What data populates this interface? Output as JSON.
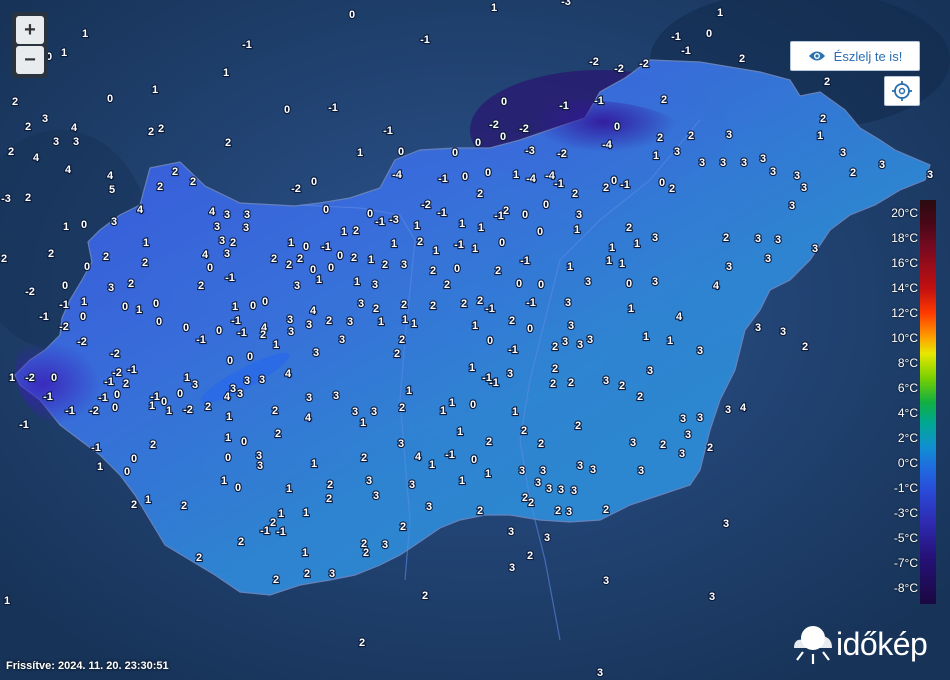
{
  "controls": {
    "zoom_in": "+",
    "zoom_out": "−",
    "observe_label": "Észlelj te is!"
  },
  "legend": {
    "labels": [
      "20°C",
      "18°C",
      "16°C",
      "14°C",
      "12°C",
      "10°C",
      "8°C",
      "6°C",
      "4°C",
      "2°C",
      "0°C",
      "-1°C",
      "-3°C",
      "-5°C",
      "-7°C",
      "-8°C"
    ]
  },
  "footer": {
    "updated": "Frissítve: 2024. 11. 20. 23:30:51",
    "brand": "időkép"
  },
  "colors": {
    "background": "#1f3f6e",
    "country_fill": "#3a6bd8",
    "accent": "#2a6fb0"
  },
  "stations": [
    [
      "1",
      494,
      7
    ],
    [
      "-3",
      566,
      1
    ],
    [
      "0",
      352,
      14
    ],
    [
      "1",
      720,
      12
    ],
    [
      "1",
      85,
      33
    ],
    [
      "-1",
      247,
      44
    ],
    [
      "-1",
      425,
      39
    ],
    [
      "-1",
      676,
      36
    ],
    [
      "0",
      709,
      33
    ],
    [
      "-1",
      686,
      50
    ],
    [
      "0",
      49,
      56
    ],
    [
      "1",
      64,
      52
    ],
    [
      "1",
      226,
      72
    ],
    [
      "-2",
      594,
      61
    ],
    [
      "-2",
      619,
      68
    ],
    [
      "-2",
      644,
      63
    ],
    [
      "2",
      742,
      58
    ],
    [
      "2",
      827,
      81
    ],
    [
      "0",
      110,
      98
    ],
    [
      "0",
      287,
      109
    ],
    [
      "-1",
      333,
      107
    ],
    [
      "0",
      504,
      101
    ],
    [
      "-1",
      564,
      105
    ],
    [
      "-1",
      599,
      100
    ],
    [
      "2",
      664,
      99
    ],
    [
      "2",
      15,
      101
    ],
    [
      "1",
      155,
      89
    ],
    [
      "2",
      28,
      126
    ],
    [
      "3",
      45,
      118
    ],
    [
      "4",
      74,
      127
    ],
    [
      "3",
      56,
      141
    ],
    [
      "3",
      76,
      141
    ],
    [
      "2",
      151,
      131
    ],
    [
      "2",
      161,
      128
    ],
    [
      "2",
      228,
      142
    ],
    [
      "-1",
      388,
      130
    ],
    [
      "-2",
      494,
      124
    ],
    [
      "-2",
      524,
      128
    ],
    [
      "0",
      617,
      126
    ],
    [
      "2",
      660,
      137
    ],
    [
      "2",
      691,
      135
    ],
    [
      "3",
      729,
      134
    ],
    [
      "2",
      823,
      118
    ],
    [
      "1",
      820,
      135
    ],
    [
      "2",
      11,
      151
    ],
    [
      "4",
      36,
      157
    ],
    [
      "4",
      68,
      169
    ],
    [
      "2",
      160,
      186
    ],
    [
      "2",
      175,
      171
    ],
    [
      "1",
      360,
      152
    ],
    [
      "0",
      401,
      151
    ],
    [
      "0",
      455,
      152
    ],
    [
      "0",
      478,
      142
    ],
    [
      "0",
      503,
      136
    ],
    [
      "-3",
      530,
      150
    ],
    [
      "-2",
      562,
      153
    ],
    [
      "-4",
      607,
      144
    ],
    [
      "1",
      656,
      155
    ],
    [
      "3",
      677,
      151
    ],
    [
      "3",
      702,
      162
    ],
    [
      "3",
      723,
      162
    ],
    [
      "3",
      744,
      162
    ],
    [
      "3",
      763,
      158
    ],
    [
      "3",
      843,
      152
    ],
    [
      "3",
      882,
      164
    ],
    [
      "4",
      110,
      175
    ],
    [
      "5",
      112,
      189
    ],
    [
      "2",
      193,
      181
    ],
    [
      "-2",
      296,
      188
    ],
    [
      "0",
      314,
      181
    ],
    [
      "-4",
      397,
      174
    ],
    [
      "-1",
      443,
      178
    ],
    [
      "0",
      465,
      176
    ],
    [
      "0",
      488,
      172
    ],
    [
      "1",
      516,
      174
    ],
    [
      "-4",
      531,
      178
    ],
    [
      "-4",
      550,
      175
    ],
    [
      "-1",
      559,
      183
    ],
    [
      "0",
      614,
      180
    ],
    [
      "-1",
      625,
      184
    ],
    [
      "0",
      662,
      182
    ],
    [
      "2",
      672,
      188
    ],
    [
      "3",
      773,
      171
    ],
    [
      "3",
      797,
      175
    ],
    [
      "2",
      853,
      172
    ],
    [
      "3",
      930,
      174
    ],
    [
      "-3",
      6,
      198
    ],
    [
      "2",
      28,
      197
    ],
    [
      "4",
      140,
      209
    ],
    [
      "3",
      114,
      221
    ],
    [
      "4",
      212,
      211
    ],
    [
      "3",
      227,
      214
    ],
    [
      "3",
      247,
      214
    ],
    [
      "0",
      326,
      209
    ],
    [
      "0",
      370,
      213
    ],
    [
      "-2",
      426,
      204
    ],
    [
      "2",
      480,
      193
    ],
    [
      "2",
      506,
      210
    ],
    [
      "0",
      546,
      204
    ],
    [
      "2",
      575,
      193
    ],
    [
      "3",
      579,
      214
    ],
    [
      "2",
      606,
      187
    ],
    [
      "3",
      804,
      187
    ],
    [
      "3",
      792,
      205
    ],
    [
      "1",
      66,
      226
    ],
    [
      "0",
      84,
      224
    ],
    [
      "3",
      217,
      226
    ],
    [
      "3",
      246,
      227
    ],
    [
      "3",
      222,
      240
    ],
    [
      "1",
      344,
      231
    ],
    [
      "2",
      356,
      230
    ],
    [
      "-1",
      380,
      221
    ],
    [
      "-3",
      394,
      219
    ],
    [
      "1",
      417,
      225
    ],
    [
      "-1",
      442,
      212
    ],
    [
      "1",
      462,
      223
    ],
    [
      "1",
      481,
      227
    ],
    [
      "-1",
      499,
      215
    ],
    [
      "0",
      525,
      214
    ],
    [
      "0",
      540,
      231
    ],
    [
      "1",
      577,
      229
    ],
    [
      "2",
      629,
      227
    ],
    [
      "3",
      655,
      237
    ],
    [
      "2",
      726,
      237
    ],
    [
      "3",
      758,
      238
    ],
    [
      "3",
      778,
      239
    ],
    [
      "1",
      146,
      242
    ],
    [
      "2",
      233,
      242
    ],
    [
      "4",
      205,
      254
    ],
    [
      "3",
      227,
      253
    ],
    [
      "1",
      291,
      242
    ],
    [
      "0",
      306,
      246
    ],
    [
      "-1",
      326,
      246
    ],
    [
      "0",
      340,
      255
    ],
    [
      "2",
      354,
      257
    ],
    [
      "1",
      394,
      243
    ],
    [
      "2",
      420,
      241
    ],
    [
      "1",
      436,
      250
    ],
    [
      "-1",
      459,
      244
    ],
    [
      "1",
      475,
      248
    ],
    [
      "0",
      502,
      242
    ],
    [
      "1",
      612,
      247
    ],
    [
      "1",
      637,
      243
    ],
    [
      "3",
      815,
      248
    ],
    [
      "2",
      4,
      258
    ],
    [
      "2",
      51,
      253
    ],
    [
      "0",
      87,
      266
    ],
    [
      "2",
      106,
      256
    ],
    [
      "2",
      145,
      262
    ],
    [
      "0",
      210,
      267
    ],
    [
      "2",
      274,
      258
    ],
    [
      "2",
      289,
      264
    ],
    [
      "2",
      300,
      258
    ],
    [
      "0",
      313,
      269
    ],
    [
      "0",
      331,
      267
    ],
    [
      "1",
      371,
      259
    ],
    [
      "2",
      385,
      264
    ],
    [
      "3",
      404,
      264
    ],
    [
      "2",
      433,
      270
    ],
    [
      "0",
      457,
      268
    ],
    [
      "2",
      498,
      270
    ],
    [
      "-1",
      525,
      260
    ],
    [
      "1",
      570,
      266
    ],
    [
      "1",
      609,
      260
    ],
    [
      "1",
      622,
      263
    ],
    [
      "3",
      655,
      281
    ],
    [
      "4",
      716,
      285
    ],
    [
      "3",
      729,
      266
    ],
    [
      "3",
      768,
      258
    ],
    [
      "-2",
      30,
      291
    ],
    [
      "0",
      65,
      285
    ],
    [
      "3",
      111,
      287
    ],
    [
      "2",
      131,
      283
    ],
    [
      "-1",
      230,
      277
    ],
    [
      "2",
      201,
      285
    ],
    [
      "3",
      297,
      285
    ],
    [
      "1",
      319,
      279
    ],
    [
      "1",
      357,
      281
    ],
    [
      "3",
      375,
      284
    ],
    [
      "2",
      447,
      284
    ],
    [
      "0",
      519,
      283
    ],
    [
      "0",
      541,
      284
    ],
    [
      "3",
      588,
      281
    ],
    [
      "0",
      629,
      283
    ],
    [
      "1",
      84,
      301
    ],
    [
      "0",
      125,
      306
    ],
    [
      "1",
      139,
      309
    ],
    [
      "0",
      156,
      303
    ],
    [
      "1",
      235,
      306
    ],
    [
      "0",
      253,
      305
    ],
    [
      "0",
      265,
      301
    ],
    [
      "4",
      313,
      310
    ],
    [
      "3",
      361,
      303
    ],
    [
      "2",
      376,
      308
    ],
    [
      "2",
      404,
      304
    ],
    [
      "2",
      433,
      305
    ],
    [
      "2",
      464,
      303
    ],
    [
      "2",
      480,
      300
    ],
    [
      "-1",
      490,
      308
    ],
    [
      "-1",
      531,
      302
    ],
    [
      "3",
      568,
      302
    ],
    [
      "1",
      631,
      308
    ],
    [
      "4",
      679,
      316
    ],
    [
      "-1",
      44,
      316
    ],
    [
      "-1",
      64,
      304
    ],
    [
      "0",
      83,
      316
    ],
    [
      "-2",
      64,
      326
    ],
    [
      "0",
      159,
      321
    ],
    [
      "0",
      186,
      327
    ],
    [
      "0",
      219,
      330
    ],
    [
      "-1",
      236,
      320
    ],
    [
      "4",
      264,
      327
    ],
    [
      "3",
      290,
      319
    ],
    [
      "3",
      309,
      324
    ],
    [
      "2",
      329,
      320
    ],
    [
      "3",
      350,
      321
    ],
    [
      "1",
      381,
      321
    ],
    [
      "1",
      405,
      319
    ],
    [
      "1",
      414,
      323
    ],
    [
      "1",
      475,
      325
    ],
    [
      "2",
      512,
      320
    ],
    [
      "0",
      530,
      328
    ],
    [
      "3",
      571,
      325
    ],
    [
      "3",
      565,
      341
    ],
    [
      "1",
      646,
      336
    ],
    [
      "1",
      670,
      340
    ],
    [
      "3",
      758,
      327
    ],
    [
      "3",
      783,
      331
    ],
    [
      "-2",
      82,
      341
    ],
    [
      "-1",
      201,
      339
    ],
    [
      "-1",
      242,
      332
    ],
    [
      "2",
      263,
      334
    ],
    [
      "1",
      276,
      344
    ],
    [
      "3",
      291,
      331
    ],
    [
      "3",
      342,
      339
    ],
    [
      "2",
      402,
      339
    ],
    [
      "0",
      490,
      340
    ],
    [
      "-1",
      513,
      349
    ],
    [
      "2",
      555,
      346
    ],
    [
      "3",
      580,
      344
    ],
    [
      "3",
      590,
      339
    ],
    [
      "3",
      700,
      350
    ],
    [
      "2",
      805,
      346
    ],
    [
      "-2",
      115,
      353
    ],
    [
      "0",
      230,
      360
    ],
    [
      "0",
      250,
      356
    ],
    [
      "3",
      316,
      352
    ],
    [
      "2",
      397,
      353
    ],
    [
      "-1",
      132,
      369
    ],
    [
      "-2",
      117,
      372
    ],
    [
      "-1",
      109,
      381
    ],
    [
      "2",
      126,
      383
    ],
    [
      "0",
      54,
      377
    ],
    [
      "-2",
      30,
      377
    ],
    [
      "3",
      195,
      384
    ],
    [
      "3",
      233,
      388
    ],
    [
      "3",
      247,
      380
    ],
    [
      "3",
      262,
      379
    ],
    [
      "4",
      288,
      373
    ],
    [
      "1",
      472,
      367
    ],
    [
      "-1",
      487,
      377
    ],
    [
      "-1",
      494,
      382
    ],
    [
      "3",
      510,
      373
    ],
    [
      "2",
      555,
      368
    ],
    [
      "2",
      571,
      382
    ],
    [
      "2",
      553,
      383
    ],
    [
      "3",
      606,
      380
    ],
    [
      "2",
      622,
      385
    ],
    [
      "3",
      650,
      370
    ],
    [
      "1",
      12,
      377
    ],
    [
      "0",
      180,
      393
    ],
    [
      "1",
      187,
      377
    ],
    [
      "-1",
      48,
      396
    ],
    [
      "-1",
      103,
      397
    ],
    [
      "0",
      117,
      394
    ],
    [
      "-2",
      94,
      410
    ],
    [
      "0",
      115,
      407
    ],
    [
      "-1",
      70,
      410
    ],
    [
      "-1",
      24,
      424
    ],
    [
      "1",
      152,
      405
    ],
    [
      "-1",
      155,
      396
    ],
    [
      "0",
      164,
      401
    ],
    [
      "1",
      169,
      410
    ],
    [
      "-2",
      188,
      409
    ],
    [
      "2",
      208,
      406
    ],
    [
      "4",
      227,
      396
    ],
    [
      "3",
      240,
      393
    ],
    [
      "2",
      275,
      410
    ],
    [
      "3",
      309,
      397
    ],
    [
      "3",
      336,
      395
    ],
    [
      "3",
      355,
      411
    ],
    [
      "3",
      374,
      411
    ],
    [
      "2",
      402,
      407
    ],
    [
      "1",
      409,
      390
    ],
    [
      "1",
      443,
      410
    ],
    [
      "1",
      452,
      402
    ],
    [
      "0",
      473,
      404
    ],
    [
      "1",
      515,
      411
    ],
    [
      "2",
      640,
      396
    ],
    [
      "3",
      683,
      418
    ],
    [
      "3",
      700,
      417
    ],
    [
      "3",
      728,
      409
    ],
    [
      "4",
      743,
      407
    ],
    [
      "1",
      229,
      416
    ],
    [
      "4",
      308,
      417
    ],
    [
      "1",
      363,
      422
    ],
    [
      "1",
      460,
      431
    ],
    [
      "2",
      524,
      430
    ],
    [
      "2",
      578,
      425
    ],
    [
      "2",
      489,
      441
    ],
    [
      "2",
      541,
      443
    ],
    [
      "3",
      633,
      442
    ],
    [
      "2",
      663,
      444
    ],
    [
      "3",
      688,
      434
    ],
    [
      "2",
      710,
      447
    ],
    [
      "-1",
      96,
      447
    ],
    [
      "2",
      153,
      444
    ],
    [
      "1",
      228,
      437
    ],
    [
      "0",
      244,
      441
    ],
    [
      "3",
      259,
      455
    ],
    [
      "2",
      278,
      433
    ],
    [
      "3",
      401,
      443
    ],
    [
      "4",
      418,
      456
    ],
    [
      "1",
      432,
      464
    ],
    [
      "-1",
      450,
      454
    ],
    [
      "2",
      364,
      457
    ],
    [
      "1",
      100,
      466
    ],
    [
      "0",
      134,
      458
    ],
    [
      "0",
      127,
      471
    ],
    [
      "0",
      228,
      457
    ],
    [
      "1",
      314,
      463
    ],
    [
      "3",
      260,
      465
    ],
    [
      "0",
      474,
      459
    ],
    [
      "3",
      522,
      470
    ],
    [
      "3",
      543,
      470
    ],
    [
      "3",
      580,
      465
    ],
    [
      "3",
      593,
      469
    ],
    [
      "3",
      641,
      470
    ],
    [
      "3",
      682,
      453
    ],
    [
      "1",
      224,
      480
    ],
    [
      "0",
      238,
      487
    ],
    [
      "1",
      289,
      488
    ],
    [
      "3",
      369,
      480
    ],
    [
      "3",
      412,
      484
    ],
    [
      "1",
      462,
      480
    ],
    [
      "1",
      488,
      473
    ],
    [
      "3",
      538,
      482
    ],
    [
      "3",
      549,
      488
    ],
    [
      "3",
      561,
      489
    ],
    [
      "3",
      574,
      490
    ],
    [
      "2",
      525,
      497
    ],
    [
      "2",
      531,
      502
    ],
    [
      "1",
      148,
      499
    ],
    [
      "2",
      134,
      504
    ],
    [
      "2",
      184,
      505
    ],
    [
      "2",
      330,
      484
    ],
    [
      "2",
      329,
      498
    ],
    [
      "3",
      376,
      495
    ],
    [
      "3",
      429,
      506
    ],
    [
      "2",
      558,
      510
    ],
    [
      "3",
      569,
      511
    ],
    [
      "2",
      606,
      509
    ],
    [
      "1",
      281,
      513
    ],
    [
      "1",
      306,
      512
    ],
    [
      "2",
      273,
      522
    ],
    [
      "-1",
      265,
      530
    ],
    [
      "2",
      480,
      510
    ],
    [
      "2",
      403,
      526
    ],
    [
      "-1",
      281,
      531
    ],
    [
      "3",
      726,
      523
    ],
    [
      "2",
      241,
      541
    ],
    [
      "1",
      305,
      552
    ],
    [
      "2",
      364,
      543
    ],
    [
      "3",
      385,
      544
    ],
    [
      "2",
      366,
      552
    ],
    [
      "3",
      547,
      537
    ],
    [
      "3",
      511,
      531
    ],
    [
      "2",
      530,
      555
    ],
    [
      "2",
      199,
      557
    ],
    [
      "3",
      512,
      567
    ],
    [
      "3",
      606,
      580
    ],
    [
      "2",
      276,
      579
    ],
    [
      "2",
      307,
      573
    ],
    [
      "3",
      332,
      573
    ],
    [
      "1",
      7,
      600
    ],
    [
      "2",
      425,
      595
    ],
    [
      "3",
      712,
      596
    ],
    [
      "2",
      362,
      642
    ],
    [
      "3",
      600,
      672
    ]
  ]
}
